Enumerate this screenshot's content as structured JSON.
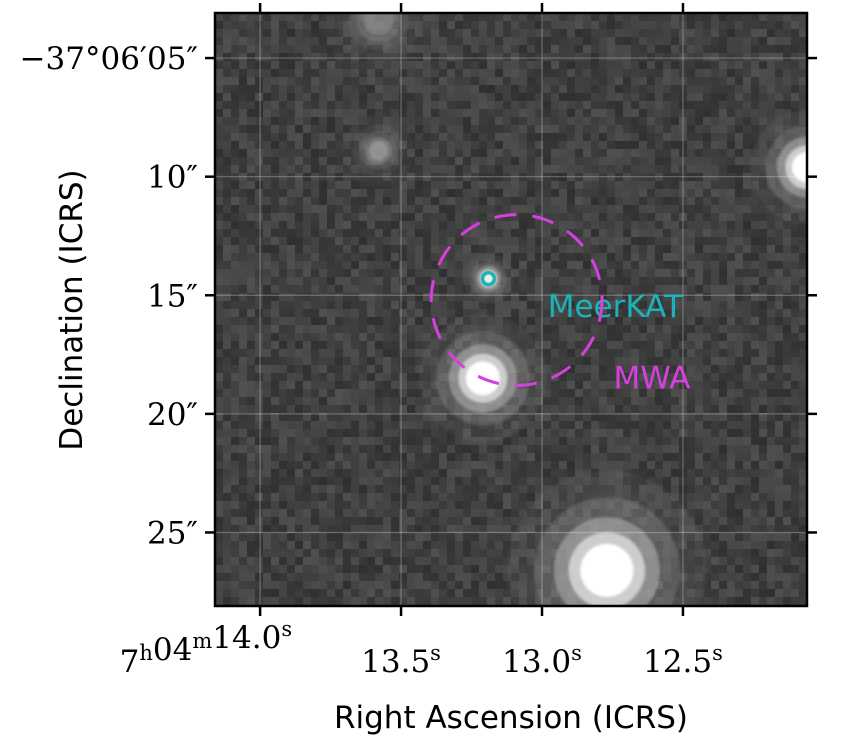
{
  "chart_data": {
    "type": "image",
    "xlabel": "Right Ascension (ICRS)",
    "ylabel": "Declination (ICRS)",
    "x_ticks": [
      {
        "value": 14.0,
        "label_main": "7",
        "label_parts": [
          {
            "t": "7",
            "sup": "h"
          },
          {
            "t": "04",
            "sup": "m"
          },
          {
            "t": "14.0",
            "sup": "s"
          }
        ]
      },
      {
        "value": 13.5,
        "label_parts": [
          {
            "t": "13.5",
            "sup": "s"
          }
        ]
      },
      {
        "value": 13.0,
        "label_parts": [
          {
            "t": "13.0",
            "sup": "s"
          }
        ]
      },
      {
        "value": 12.5,
        "label_parts": [
          {
            "t": "12.5",
            "sup": "s"
          }
        ]
      }
    ],
    "y_ticks": [
      {
        "value": 5,
        "label": "−37°06′05″"
      },
      {
        "value": 10,
        "label": "10″"
      },
      {
        "value": 15,
        "label": "15″"
      },
      {
        "value": 20,
        "label": "20″"
      },
      {
        "value": 25,
        "label": "25″"
      }
    ],
    "xlim": [
      14.16,
      12.06
    ],
    "ylim": [
      3.1,
      28.1
    ],
    "grid": true,
    "background_color": "#3a3a3a",
    "sources": [
      {
        "ra_s": 13.19,
        "dec_as": 14.3,
        "peak": 0.9,
        "sigma_as": 0.35
      },
      {
        "ra_s": 13.21,
        "dec_as": 18.5,
        "peak": 1.0,
        "sigma_as": 0.9
      },
      {
        "ra_s": 12.77,
        "dec_as": 26.6,
        "peak": 1.0,
        "sigma_as": 1.4
      },
      {
        "ra_s": 13.58,
        "dec_as": 8.9,
        "peak": 0.45,
        "sigma_as": 0.5
      },
      {
        "ra_s": 12.06,
        "dec_as": 9.6,
        "peak": 1.0,
        "sigma_as": 0.8
      },
      {
        "ra_s": 13.58,
        "dec_as": 3.4,
        "peak": 0.35,
        "sigma_as": 0.8
      }
    ],
    "annotations": [
      {
        "label": "MeerKAT",
        "color": "#19b5b8",
        "shape": "circle",
        "style": "solid",
        "ra_s": 13.19,
        "dec_as": 14.3,
        "radius_as": 0.25,
        "label_ra_s": 12.74,
        "label_dec_as": 15.5
      },
      {
        "label": "MWA",
        "color": "#d73fe0",
        "shape": "circle",
        "style": "dashed",
        "ra_s": 13.09,
        "dec_as": 15.2,
        "radius_as": 3.6,
        "label_ra_s": 12.61,
        "label_dec_as": 18.5
      }
    ]
  }
}
